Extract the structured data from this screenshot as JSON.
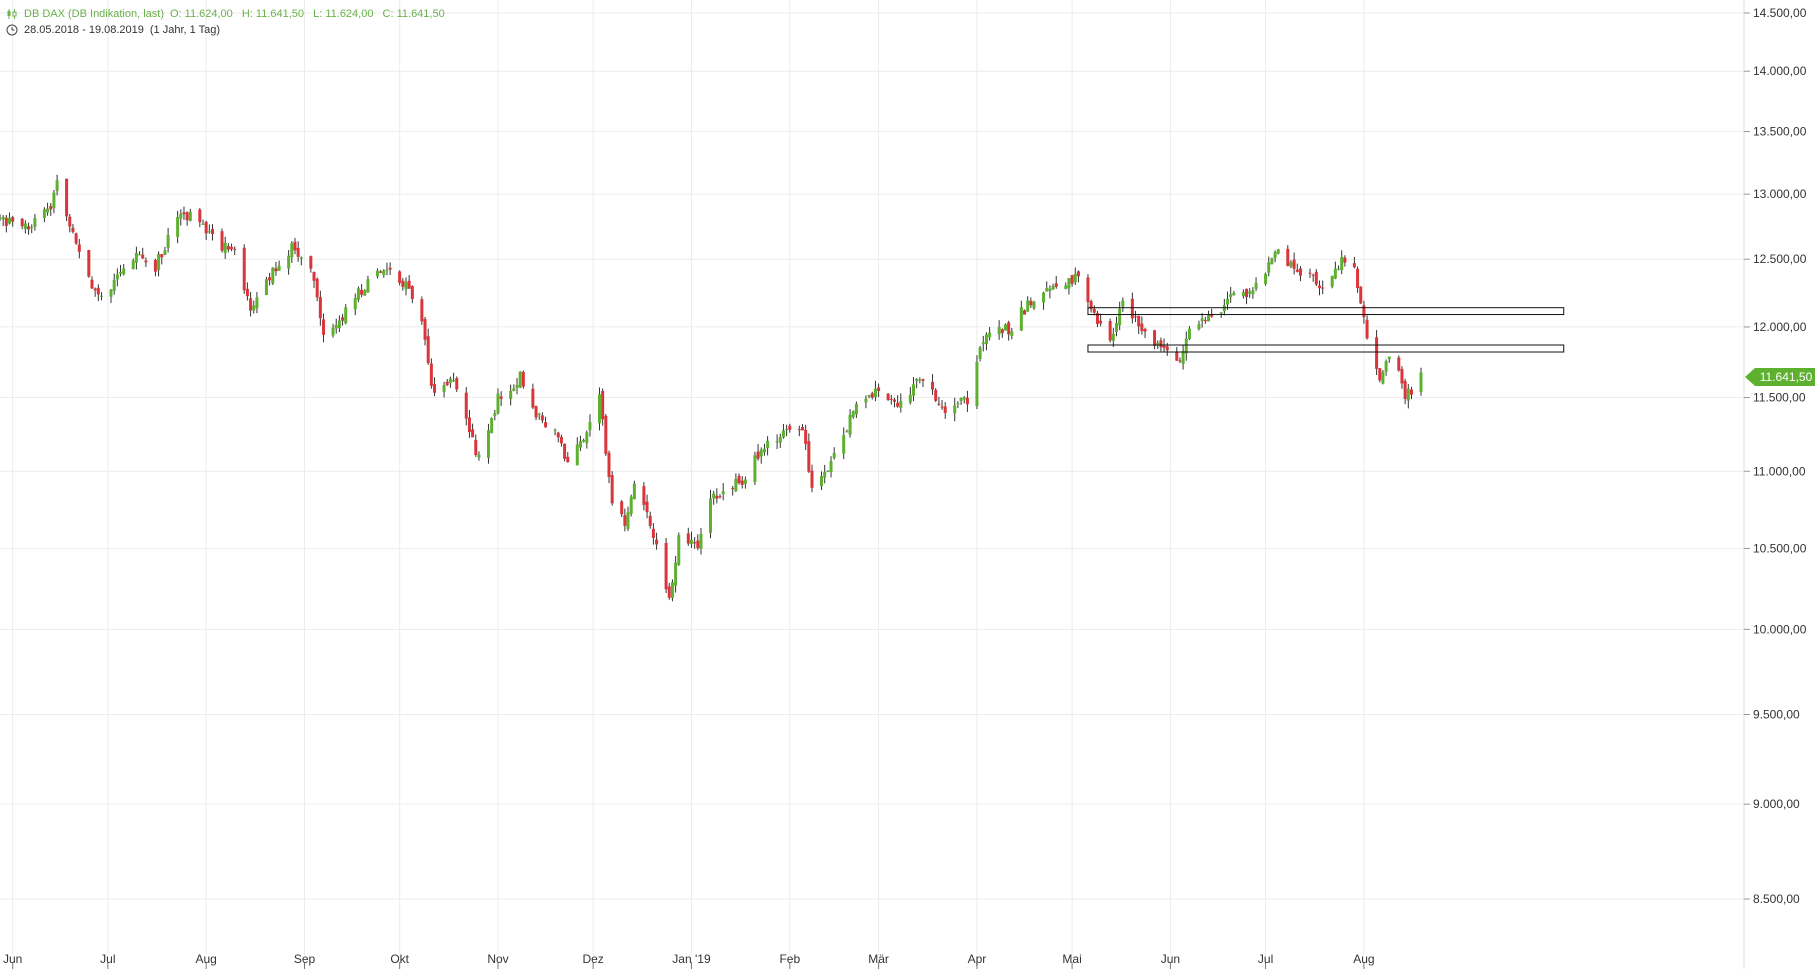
{
  "header": {
    "instrument": "DB DAX (DB Indikation, last)",
    "open": "O: 11.624,00",
    "high": "H: 11.641,50",
    "low": "L: 11.624,00",
    "close": "C: 11.641,50",
    "date_range": "28.05.2018 - 19.08.2019",
    "period": "(1 Jahr, 1 Tag)",
    "icon": "candlestick-icon",
    "clock_icon": "clock-icon"
  },
  "last_price": {
    "value": 11641.5,
    "label": "11.641,50",
    "color": "#5db12f"
  },
  "colors": {
    "up": "#5db12f",
    "down": "#d9353a",
    "grid": "#ececec",
    "axis_text": "#333333"
  },
  "chart_data": {
    "type": "candlestick",
    "x_range": [
      "2018-05-28",
      "2019-08-19"
    ],
    "ylim": [
      8250,
      14600
    ],
    "y_ticks": [
      {
        "value": 14500,
        "label": "14.500,00"
      },
      {
        "value": 14000,
        "label": "14.000,00"
      },
      {
        "value": 13500,
        "label": "13.500,00"
      },
      {
        "value": 13000,
        "label": "13.000,00"
      },
      {
        "value": 12500,
        "label": "12.500,00"
      },
      {
        "value": 12000,
        "label": "12.000,00"
      },
      {
        "value": 11500,
        "label": "11.500,00"
      },
      {
        "value": 11000,
        "label": "11.000,00"
      },
      {
        "value": 10500,
        "label": "10.500,00"
      },
      {
        "value": 10000,
        "label": "10.000,00"
      },
      {
        "value": 9500,
        "label": "9.500,00"
      },
      {
        "value": 9000,
        "label": "9.000,00"
      },
      {
        "value": 8500,
        "label": "8.500,00"
      }
    ],
    "x_ticks": [
      {
        "date": "2018-06-01",
        "label": "Jun"
      },
      {
        "date": "2018-07-01",
        "label": "Jul"
      },
      {
        "date": "2018-08-01",
        "label": "Aug"
      },
      {
        "date": "2018-09-01",
        "label": "Sep"
      },
      {
        "date": "2018-10-01",
        "label": "Okt"
      },
      {
        "date": "2018-11-01",
        "label": "Nov"
      },
      {
        "date": "2018-12-01",
        "label": "Dez"
      },
      {
        "date": "2019-01-01",
        "label": "Jan '19"
      },
      {
        "date": "2019-02-01",
        "label": "Feb"
      },
      {
        "date": "2019-03-01",
        "label": "Mär"
      },
      {
        "date": "2019-04-01",
        "label": "Apr"
      },
      {
        "date": "2019-05-01",
        "label": "Mai"
      },
      {
        "date": "2019-06-01",
        "label": "Jun"
      },
      {
        "date": "2019-07-01",
        "label": "Jul"
      },
      {
        "date": "2019-08-01",
        "label": "Aug"
      }
    ],
    "path": [
      [
        "2018-05-28",
        12800
      ],
      [
        "2018-06-06",
        12730
      ],
      [
        "2018-06-13",
        12900
      ],
      [
        "2018-06-15",
        13150
      ],
      [
        "2018-06-18",
        12820
      ],
      [
        "2018-06-22",
        12550
      ],
      [
        "2018-06-28",
        12200
      ],
      [
        "2018-07-04",
        12370
      ],
      [
        "2018-07-10",
        12550
      ],
      [
        "2018-07-16",
        12450
      ],
      [
        "2018-07-23",
        12800
      ],
      [
        "2018-07-27",
        12850
      ],
      [
        "2018-08-03",
        12650
      ],
      [
        "2018-08-10",
        12550
      ],
      [
        "2018-08-15",
        12150
      ],
      [
        "2018-08-22",
        12400
      ],
      [
        "2018-08-28",
        12580
      ],
      [
        "2018-09-03",
        12450
      ],
      [
        "2018-09-07",
        11980
      ],
      [
        "2018-09-12",
        12050
      ],
      [
        "2018-09-20",
        12300
      ],
      [
        "2018-09-27",
        12440
      ],
      [
        "2018-10-03",
        12300
      ],
      [
        "2018-10-08",
        12050
      ],
      [
        "2018-10-11",
        11550
      ],
      [
        "2018-10-18",
        11650
      ],
      [
        "2018-10-24",
        11200
      ],
      [
        "2018-10-26",
        11100
      ],
      [
        "2018-11-01",
        11500
      ],
      [
        "2018-11-08",
        11650
      ],
      [
        "2018-11-13",
        11400
      ],
      [
        "2018-11-19",
        11250
      ],
      [
        "2018-11-23",
        11050
      ],
      [
        "2018-11-30",
        11300
      ],
      [
        "2018-12-03",
        11500
      ],
      [
        "2018-12-07",
        10800
      ],
      [
        "2018-12-11",
        10650
      ],
      [
        "2018-12-14",
        10900
      ],
      [
        "2018-12-19",
        10650
      ],
      [
        "2018-12-25",
        10150
      ],
      [
        "2018-12-28",
        10550
      ],
      [
        "2019-01-03",
        10500
      ],
      [
        "2019-01-08",
        10850
      ],
      [
        "2019-01-17",
        10950
      ],
      [
        "2019-01-23",
        11150
      ],
      [
        "2019-01-29",
        11250
      ],
      [
        "2019-02-05",
        11300
      ],
      [
        "2019-02-08",
        10900
      ],
      [
        "2019-02-15",
        11100
      ],
      [
        "2019-02-22",
        11450
      ],
      [
        "2019-02-28",
        11550
      ],
      [
        "2019-03-08",
        11450
      ],
      [
        "2019-03-15",
        11650
      ],
      [
        "2019-03-22",
        11400
      ],
      [
        "2019-03-26",
        11500
      ],
      [
        "2019-03-29",
        11450
      ],
      [
        "2019-04-03",
        11900
      ],
      [
        "2019-04-12",
        12000
      ],
      [
        "2019-04-18",
        12200
      ],
      [
        "2019-04-26",
        12320
      ],
      [
        "2019-05-03",
        12350
      ],
      [
        "2019-05-08",
        12100
      ],
      [
        "2019-05-13",
        11900
      ],
      [
        "2019-05-17",
        12200
      ],
      [
        "2019-05-23",
        11950
      ],
      [
        "2019-05-29",
        11850
      ],
      [
        "2019-06-03",
        11750
      ],
      [
        "2019-06-07",
        11950
      ],
      [
        "2019-06-14",
        12100
      ],
      [
        "2019-06-20",
        12200
      ],
      [
        "2019-06-25",
        12250
      ],
      [
        "2019-07-01",
        12400
      ],
      [
        "2019-07-05",
        12600
      ],
      [
        "2019-07-10",
        12420
      ],
      [
        "2019-07-16",
        12380
      ],
      [
        "2019-07-19",
        12250
      ],
      [
        "2019-07-25",
        12500
      ],
      [
        "2019-07-29",
        12400
      ],
      [
        "2019-07-31",
        12200
      ],
      [
        "2019-08-02",
        11900
      ],
      [
        "2019-08-06",
        11600
      ],
      [
        "2019-08-08",
        11800
      ],
      [
        "2019-08-12",
        11700
      ],
      [
        "2019-08-14",
        11500
      ],
      [
        "2019-08-16",
        11550
      ],
      [
        "2019-08-19",
        11641.5
      ]
    ],
    "zones": [
      {
        "start": "2019-05-06",
        "end": "2019-10-03",
        "low": 12090,
        "high": 12140
      },
      {
        "start": "2019-05-06",
        "end": "2019-10-03",
        "low": 11820,
        "high": 11870
      }
    ]
  }
}
